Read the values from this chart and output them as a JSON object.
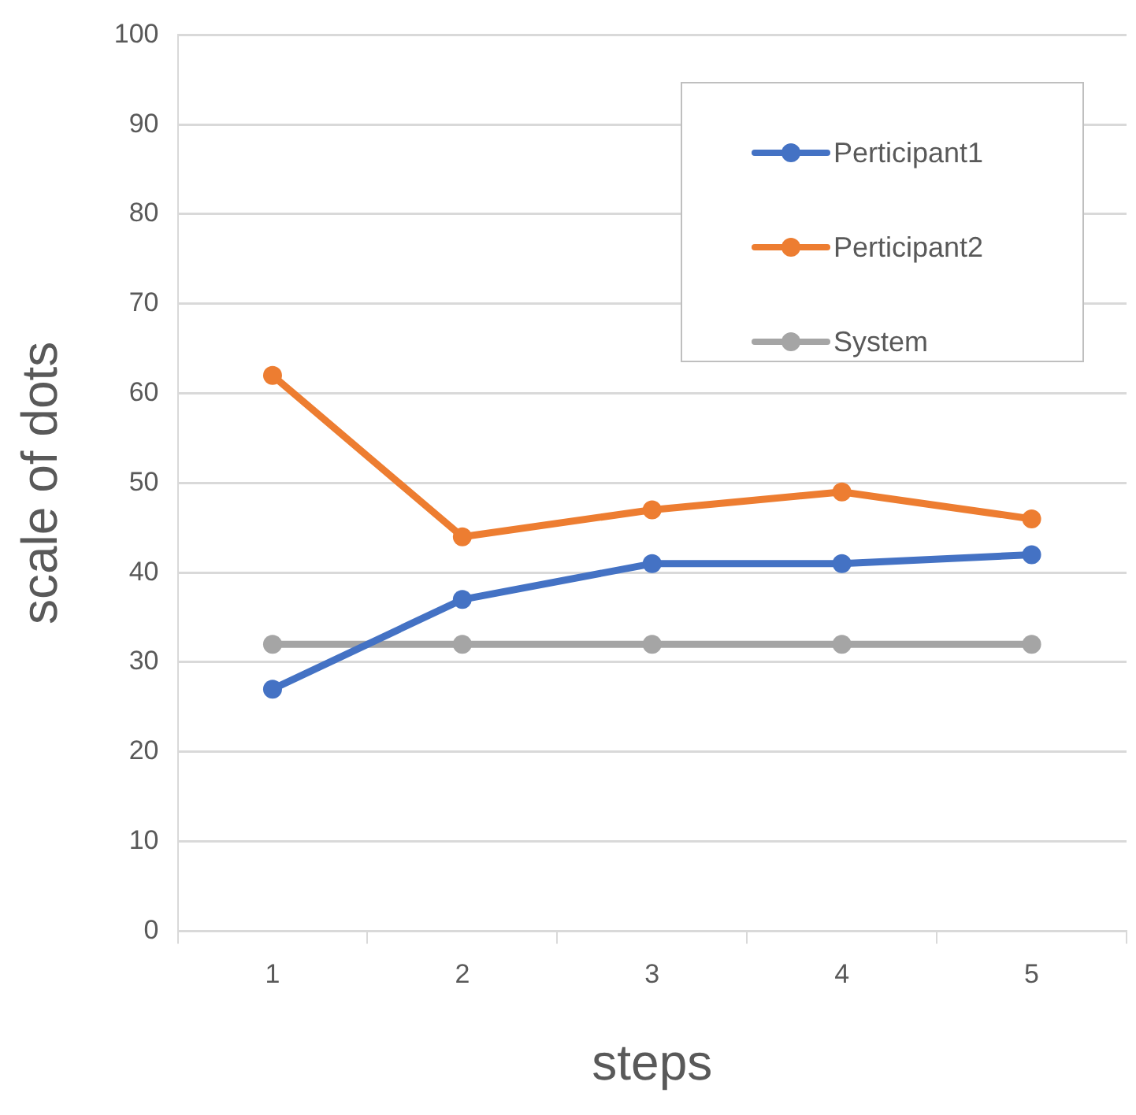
{
  "chart_data": {
    "type": "line",
    "xlabel": "steps",
    "ylabel": "scale of dots",
    "categories": [
      "1",
      "2",
      "3",
      "4",
      "5"
    ],
    "series": [
      {
        "name": "Perticipant1",
        "color": "#4472c4",
        "values": [
          27,
          37,
          41,
          41,
          42
        ]
      },
      {
        "name": "Perticipant2",
        "color": "#ed7d31",
        "values": [
          62,
          44,
          47,
          49,
          46
        ]
      },
      {
        "name": "System",
        "color": "#a5a5a5",
        "values": [
          32,
          32,
          32,
          32,
          32
        ]
      }
    ],
    "ylim": [
      0,
      100
    ],
    "yticks": [
      0,
      10,
      20,
      30,
      40,
      50,
      60,
      70,
      80,
      90,
      100
    ],
    "grid": "y",
    "legend": "top right",
    "marker": "circle",
    "line_style": "solid"
  }
}
